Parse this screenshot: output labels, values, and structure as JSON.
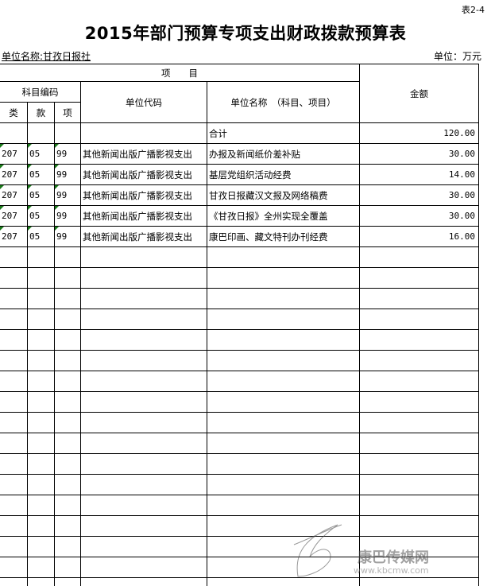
{
  "table_no": "表2-4",
  "title": "2015年部门预算专项支出财政拨款预算表",
  "unit_name": "单位名称:甘孜日报社",
  "unit": "单位：万元",
  "headers": {
    "project": "项　　目",
    "subject_code": "科目编码",
    "lei": "类",
    "kuan": "款",
    "xiang": "项",
    "dept_code": "单位代码",
    "dept_name": "单位名称　（科目、项目）",
    "amount": "金额"
  },
  "total": {
    "label": "合计",
    "amount": "120.00"
  },
  "rows": [
    {
      "lei": "207",
      "kuan": "05",
      "xiang": "99",
      "code": "其他新闻出版广播影视支出",
      "name": "办报及新闻纸价差补贴",
      "amount": "30.00"
    },
    {
      "lei": "207",
      "kuan": "05",
      "xiang": "99",
      "code": "其他新闻出版广播影视支出",
      "name": "基层党组织活动经费",
      "amount": "14.00"
    },
    {
      "lei": "207",
      "kuan": "05",
      "xiang": "99",
      "code": "其他新闻出版广播影视支出",
      "name": "甘孜日报藏汉文报及网络稿费",
      "amount": "30.00"
    },
    {
      "lei": "207",
      "kuan": "05",
      "xiang": "99",
      "code": "其他新闻出版广播影视支出",
      "name": "《甘孜日报》全州实现全覆盖",
      "amount": "30.00"
    },
    {
      "lei": "207",
      "kuan": "05",
      "xiang": "99",
      "code": "其他新闻出版广播影视支出",
      "name": "康巴印画、藏文特刊办刊经费",
      "amount": "16.00"
    }
  ],
  "watermark": {
    "name": "康巴传媒网",
    "url": "www.kbcmw.com"
  }
}
